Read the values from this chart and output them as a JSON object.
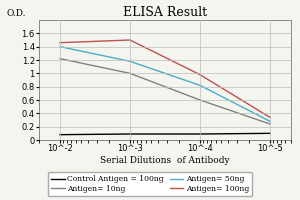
{
  "title": "ELISA Result",
  "ylabel": "O.D.",
  "xlabel": "Serial Dilutions  of Antibody",
  "x_values": [
    0.01,
    0.001,
    0.0001,
    1e-05
  ],
  "ylim": [
    0,
    1.8
  ],
  "yticks": [
    0,
    0.2,
    0.4,
    0.6,
    0.8,
    1.0,
    1.2,
    1.4,
    1.6
  ],
  "lines": [
    {
      "label": "Control Antigen = 100ng",
      "color": "#000000",
      "values": [
        0.08,
        0.09,
        0.09,
        0.1
      ]
    },
    {
      "label": "Antigen= 10ng",
      "color": "#808080",
      "values": [
        1.22,
        1.0,
        0.6,
        0.24
      ]
    },
    {
      "label": "Antigen= 50ng",
      "color": "#4BACC6",
      "values": [
        1.4,
        1.18,
        0.82,
        0.28
      ]
    },
    {
      "label": "Antigen= 100ng",
      "color": "#C0504D",
      "values": [
        1.46,
        1.5,
        0.98,
        0.34
      ]
    }
  ],
  "background_color": "#F5F5F0",
  "plot_bg_color": "#F5F5F0",
  "grid_color": "#BBBBBB",
  "title_fontsize": 9,
  "label_fontsize": 6.5,
  "tick_fontsize": 6,
  "legend_fontsize": 5.5
}
